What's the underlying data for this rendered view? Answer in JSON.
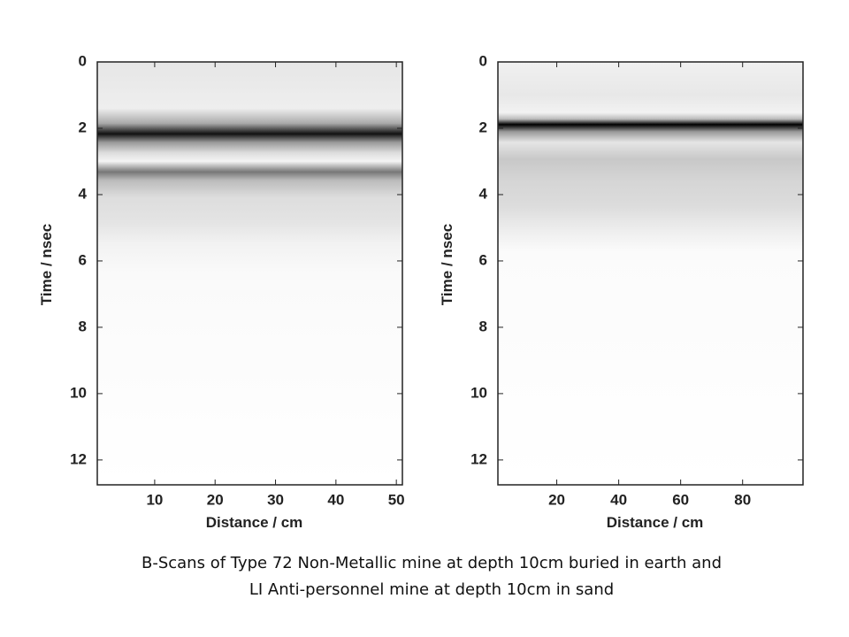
{
  "chart_data": [
    {
      "type": "image",
      "xlabel": "Distance / cm",
      "ylabel": "Time / nsec",
      "xlim": [
        0.5,
        51
      ],
      "xticks": [
        10,
        20,
        30,
        40,
        50
      ],
      "ylim": [
        0,
        12.75
      ],
      "yticks": [
        0,
        2,
        4,
        6,
        8,
        10,
        12
      ]
    },
    {
      "type": "image",
      "xlabel": "Distance / cm",
      "ylabel": "Time / nsec",
      "xlim": [
        1,
        99.5
      ],
      "xticks": [
        20,
        40,
        60,
        80
      ],
      "ylim": [
        0,
        12.75
      ],
      "yticks": [
        0,
        2,
        4,
        6,
        8,
        10,
        12
      ]
    }
  ],
  "caption": [
    "B-Scans of Type 72 Non-Metallic mine at depth 10cm buried in earth and",
    "LI Anti-personnel mine at depth 10cm in sand"
  ]
}
